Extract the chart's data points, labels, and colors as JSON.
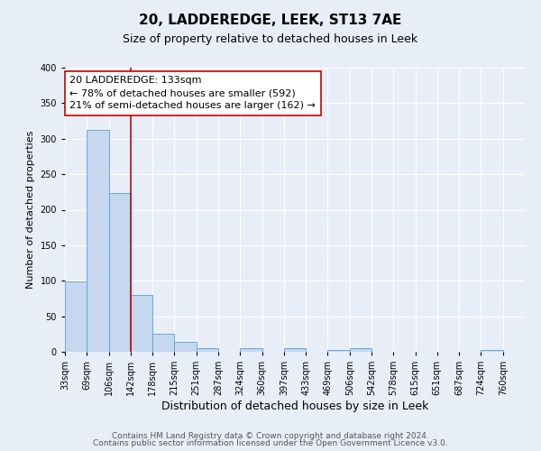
{
  "title": "20, LADDEREDGE, LEEK, ST13 7AE",
  "subtitle": "Size of property relative to detached houses in Leek",
  "xlabel": "Distribution of detached houses by size in Leek",
  "ylabel": "Number of detached properties",
  "bin_labels": [
    "33sqm",
    "69sqm",
    "106sqm",
    "142sqm",
    "178sqm",
    "215sqm",
    "251sqm",
    "287sqm",
    "324sqm",
    "360sqm",
    "397sqm",
    "433sqm",
    "469sqm",
    "506sqm",
    "542sqm",
    "578sqm",
    "615sqm",
    "651sqm",
    "687sqm",
    "724sqm",
    "760sqm"
  ],
  "bar_heights": [
    99,
    313,
    224,
    80,
    26,
    14,
    5,
    0,
    5,
    0,
    5,
    0,
    3,
    5,
    0,
    0,
    0,
    0,
    0,
    3,
    0
  ],
  "bar_color": "#c5d8f0",
  "bar_edge_color": "#5a9fd4",
  "vline_color": "#cc0000",
  "vline_x_index": 3,
  "annotation_text": "20 LADDEREDGE: 133sqm\n← 78% of detached houses are smaller (592)\n21% of semi-detached houses are larger (162) →",
  "annotation_box_facecolor": "#ffffff",
  "annotation_box_edgecolor": "#cc0000",
  "ylim": [
    0,
    400
  ],
  "yticks": [
    0,
    50,
    100,
    150,
    200,
    250,
    300,
    350,
    400
  ],
  "footer_line1": "Contains HM Land Registry data © Crown copyright and database right 2024.",
  "footer_line2": "Contains public sector information licensed under the Open Government Licence v3.0.",
  "bg_color": "#e8eef8",
  "plot_bg_color": "#e8eef8",
  "grid_color": "#ffffff",
  "title_fontsize": 11,
  "subtitle_fontsize": 9,
  "xlabel_fontsize": 9,
  "ylabel_fontsize": 8,
  "tick_fontsize": 7,
  "annotation_fontsize": 8,
  "footer_fontsize": 6.5
}
